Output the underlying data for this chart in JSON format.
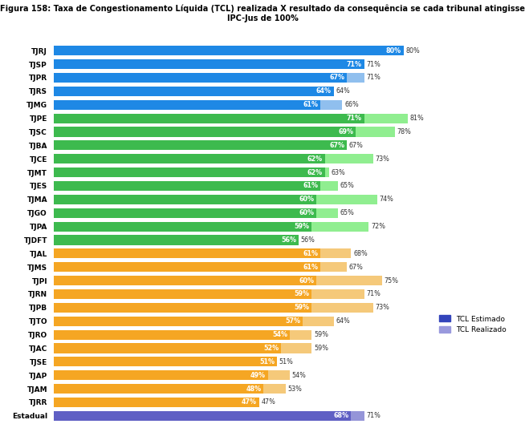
{
  "title": "Figura 158: Taxa de Congestionamento Líquida (TCL) realizada X resultado da consequência se cada tribunal atingisse\nIPC-Jus de 100%",
  "categories": [
    "Estadual",
    "TJRR",
    "TJAM",
    "TJAP",
    "TJSE",
    "TJAC",
    "TJRO",
    "TJTO",
    "TJPB",
    "TJRN",
    "TJPI",
    "TJMS",
    "TJAL",
    "TJDFT",
    "TJPA",
    "TJGO",
    "TJMA",
    "TJES",
    "TJMT",
    "TJCE",
    "TJBA",
    "TJSC",
    "TJPE",
    "TJMG",
    "TJRS",
    "TJPR",
    "TJSP",
    "TJRJ"
  ],
  "tcl_estimado": [
    68,
    47,
    48,
    49,
    51,
    52,
    54,
    57,
    59,
    59,
    60,
    61,
    61,
    56,
    59,
    60,
    60,
    61,
    62,
    62,
    67,
    69,
    71,
    61,
    64,
    67,
    71,
    80
  ],
  "tcl_realizado": [
    71,
    47,
    53,
    54,
    51,
    59,
    59,
    64,
    73,
    71,
    75,
    67,
    68,
    56,
    72,
    65,
    74,
    65,
    63,
    73,
    67,
    78,
    81,
    66,
    64,
    71,
    71,
    80
  ],
  "bar_colors_estimado": [
    "#5f5fc4",
    "#f5a623",
    "#f5a623",
    "#f5a623",
    "#f5a623",
    "#f5a623",
    "#f5a623",
    "#f5a623",
    "#f5a623",
    "#f5a623",
    "#f5a623",
    "#f5a623",
    "#f5a623",
    "#3dba4e",
    "#3dba4e",
    "#3dba4e",
    "#3dba4e",
    "#3dba4e",
    "#3dba4e",
    "#3dba4e",
    "#3dba4e",
    "#3dba4e",
    "#3dba4e",
    "#1e88e5",
    "#1e88e5",
    "#1e88e5",
    "#1e88e5",
    "#1e88e5"
  ],
  "bar_colors_realizado": [
    "#9595d8",
    "#f5c97a",
    "#f5c97a",
    "#f5c97a",
    "#f5c97a",
    "#f5c97a",
    "#f5c97a",
    "#f5c97a",
    "#f5c97a",
    "#f5c97a",
    "#f5c97a",
    "#f5c97a",
    "#f5c97a",
    "#90ee90",
    "#90ee90",
    "#90ee90",
    "#90ee90",
    "#90ee90",
    "#90ee90",
    "#90ee90",
    "#90ee90",
    "#90ee90",
    "#90ee90",
    "#90bfee",
    "#90bfee",
    "#90bfee",
    "#90bfee",
    "#90bfee"
  ],
  "legend_estimado_color": "#3344bb",
  "legend_realizado_color": "#9999dd",
  "legend_estimado": "TCL Estimado",
  "legend_realizado": "TCL Realizado",
  "fig_width": 6.54,
  "fig_height": 5.44,
  "dpi": 100
}
